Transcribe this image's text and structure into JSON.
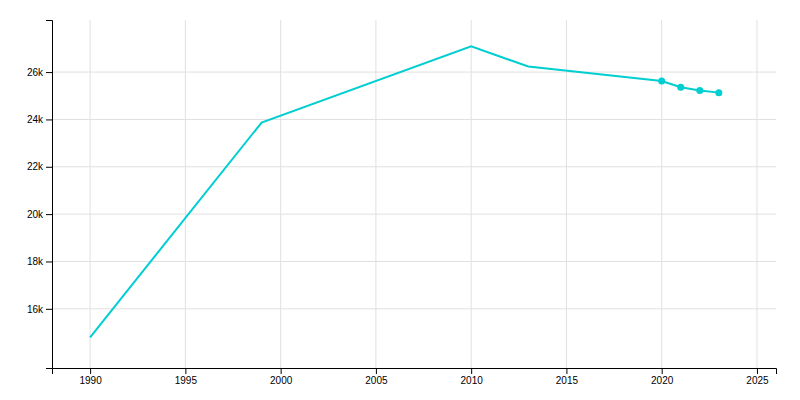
{
  "chart_data": {
    "type": "line",
    "x": [
      1990,
      1999,
      2010,
      2013,
      2020,
      2021,
      2022,
      2023
    ],
    "series": [
      {
        "color": "#00CED1",
        "line_style": "solid",
        "values": [
          14797,
          23869,
          27086,
          26234,
          25624,
          25358,
          25226,
          25132
        ]
      },
      {
        "color": "#00CED1",
        "marker": "circle",
        "line_style": "none",
        "values": [
          null,
          null,
          null,
          null,
          25624,
          25358,
          25226,
          25132
        ]
      }
    ],
    "xlim": [
      1988,
      2026
    ],
    "ylim": [
      13500,
      28200
    ],
    "xticks": [
      1990,
      1995,
      2000,
      2005,
      2010,
      2015,
      2020,
      2025
    ],
    "yticks": [
      {
        "value": 16000,
        "label": "16k"
      },
      {
        "value": 18000,
        "label": "18k"
      },
      {
        "value": 20000,
        "label": "20k"
      },
      {
        "value": 22000,
        "label": "22k"
      },
      {
        "value": 24000,
        "label": "24k"
      },
      {
        "value": 26000,
        "label": "26k"
      }
    ],
    "grid": true
  }
}
